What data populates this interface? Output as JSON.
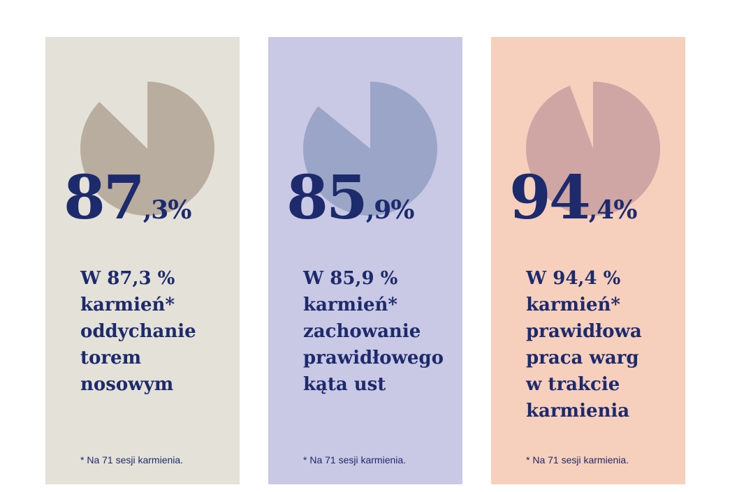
{
  "chart_data": [
    {
      "type": "pie",
      "value_percent": 87.3,
      "big_number": {
        "integer": "87",
        "decimal": ",3%"
      },
      "description_lines": [
        "W 87,3 %",
        "karmień*",
        "oddychanie",
        "torem",
        "nosowym"
      ],
      "footnote": "* Na 71 sesji karmienia.",
      "colors": {
        "background": "#e4e1d8",
        "slice": "#b8ad9e",
        "text": "#1d2a6b"
      }
    },
    {
      "type": "pie",
      "value_percent": 85.9,
      "big_number": {
        "integer": "85",
        "decimal": ",9%"
      },
      "description_lines": [
        "W 85,9 %",
        "karmień*",
        "zachowanie",
        "prawidłowego",
        "kąta ust"
      ],
      "footnote": "* Na 71 sesji karmienia.",
      "colors": {
        "background": "#c9c8e5",
        "slice": "#9aa5c8",
        "text": "#1d2a6b"
      }
    },
    {
      "type": "pie",
      "value_percent": 94.4,
      "big_number": {
        "integer": "94",
        "decimal": ",4%"
      },
      "description_lines": [
        "W 94,4 %",
        "karmień*",
        "prawidłowa",
        "praca warg",
        "w trakcie",
        "karmienia"
      ],
      "footnote": "* Na 71 sesji karmienia.",
      "colors": {
        "background": "#f6cfbd",
        "slice": "#cfa6a4",
        "text": "#1d2a6b"
      }
    }
  ]
}
